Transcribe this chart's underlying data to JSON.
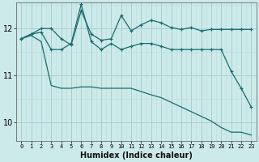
{
  "xlabel": "Humidex (Indice chaleur)",
  "bg_color": "#cceaea",
  "grid_color_major": "#aacfcf",
  "grid_color_minor": "#bbdada",
  "line_color": "#1a6b6b",
  "x_ticks": [
    0,
    1,
    2,
    3,
    4,
    5,
    6,
    7,
    8,
    9,
    10,
    11,
    12,
    13,
    14,
    15,
    16,
    17,
    18,
    19,
    20,
    21,
    22,
    23
  ],
  "ylim": [
    9.6,
    12.55
  ],
  "yticks": [
    10,
    11,
    12
  ],
  "line1_y": [
    11.78,
    11.88,
    12.0,
    12.0,
    11.78,
    11.65,
    12.38,
    11.88,
    11.75,
    11.78,
    12.28,
    11.95,
    12.08,
    12.18,
    12.12,
    12.02,
    11.98,
    12.02,
    11.95,
    11.98,
    11.98,
    11.98,
    11.98,
    11.98
  ],
  "line2_y": [
    11.78,
    11.88,
    11.92,
    11.55,
    11.55,
    11.68,
    12.52,
    11.72,
    11.55,
    11.68,
    11.55,
    11.62,
    11.68,
    11.68,
    11.62,
    11.55,
    11.55,
    11.55,
    11.55,
    11.55,
    11.55,
    11.08,
    10.72,
    10.32
  ],
  "line3_y": [
    11.78,
    11.85,
    11.72,
    10.78,
    10.72,
    10.72,
    10.75,
    10.75,
    10.72,
    10.72,
    10.72,
    10.72,
    10.65,
    10.58,
    10.52,
    10.42,
    10.32,
    10.22,
    10.12,
    10.02,
    9.88,
    9.78,
    9.78,
    9.72
  ]
}
